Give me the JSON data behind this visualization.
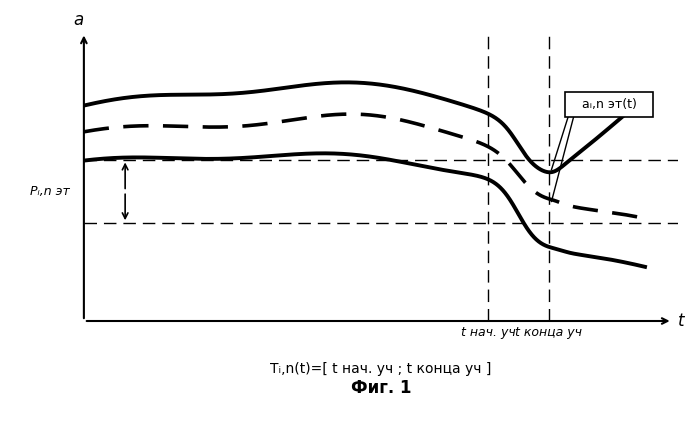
{
  "xlabel_label": "t",
  "ylabel_label": "a",
  "fig_caption": "Фиг. 1",
  "bottom_text": "Tᵢ,n(t)=[ t нач. уч ; t конца уч ]",
  "t_nach_label": "t нач. уч",
  "t_konca_label": "t конца уч",
  "p_label": "Pᵢ,n эт",
  "annot_label": "aᵢ,n эт(t)",
  "background_color": "#ffffff",
  "t_nach": 0.735,
  "t_konca": 0.845,
  "p_upper": 0.56,
  "p_lower": 0.32,
  "xlim": [
    0,
    1.08
  ],
  "ylim": [
    -0.05,
    1.05
  ]
}
